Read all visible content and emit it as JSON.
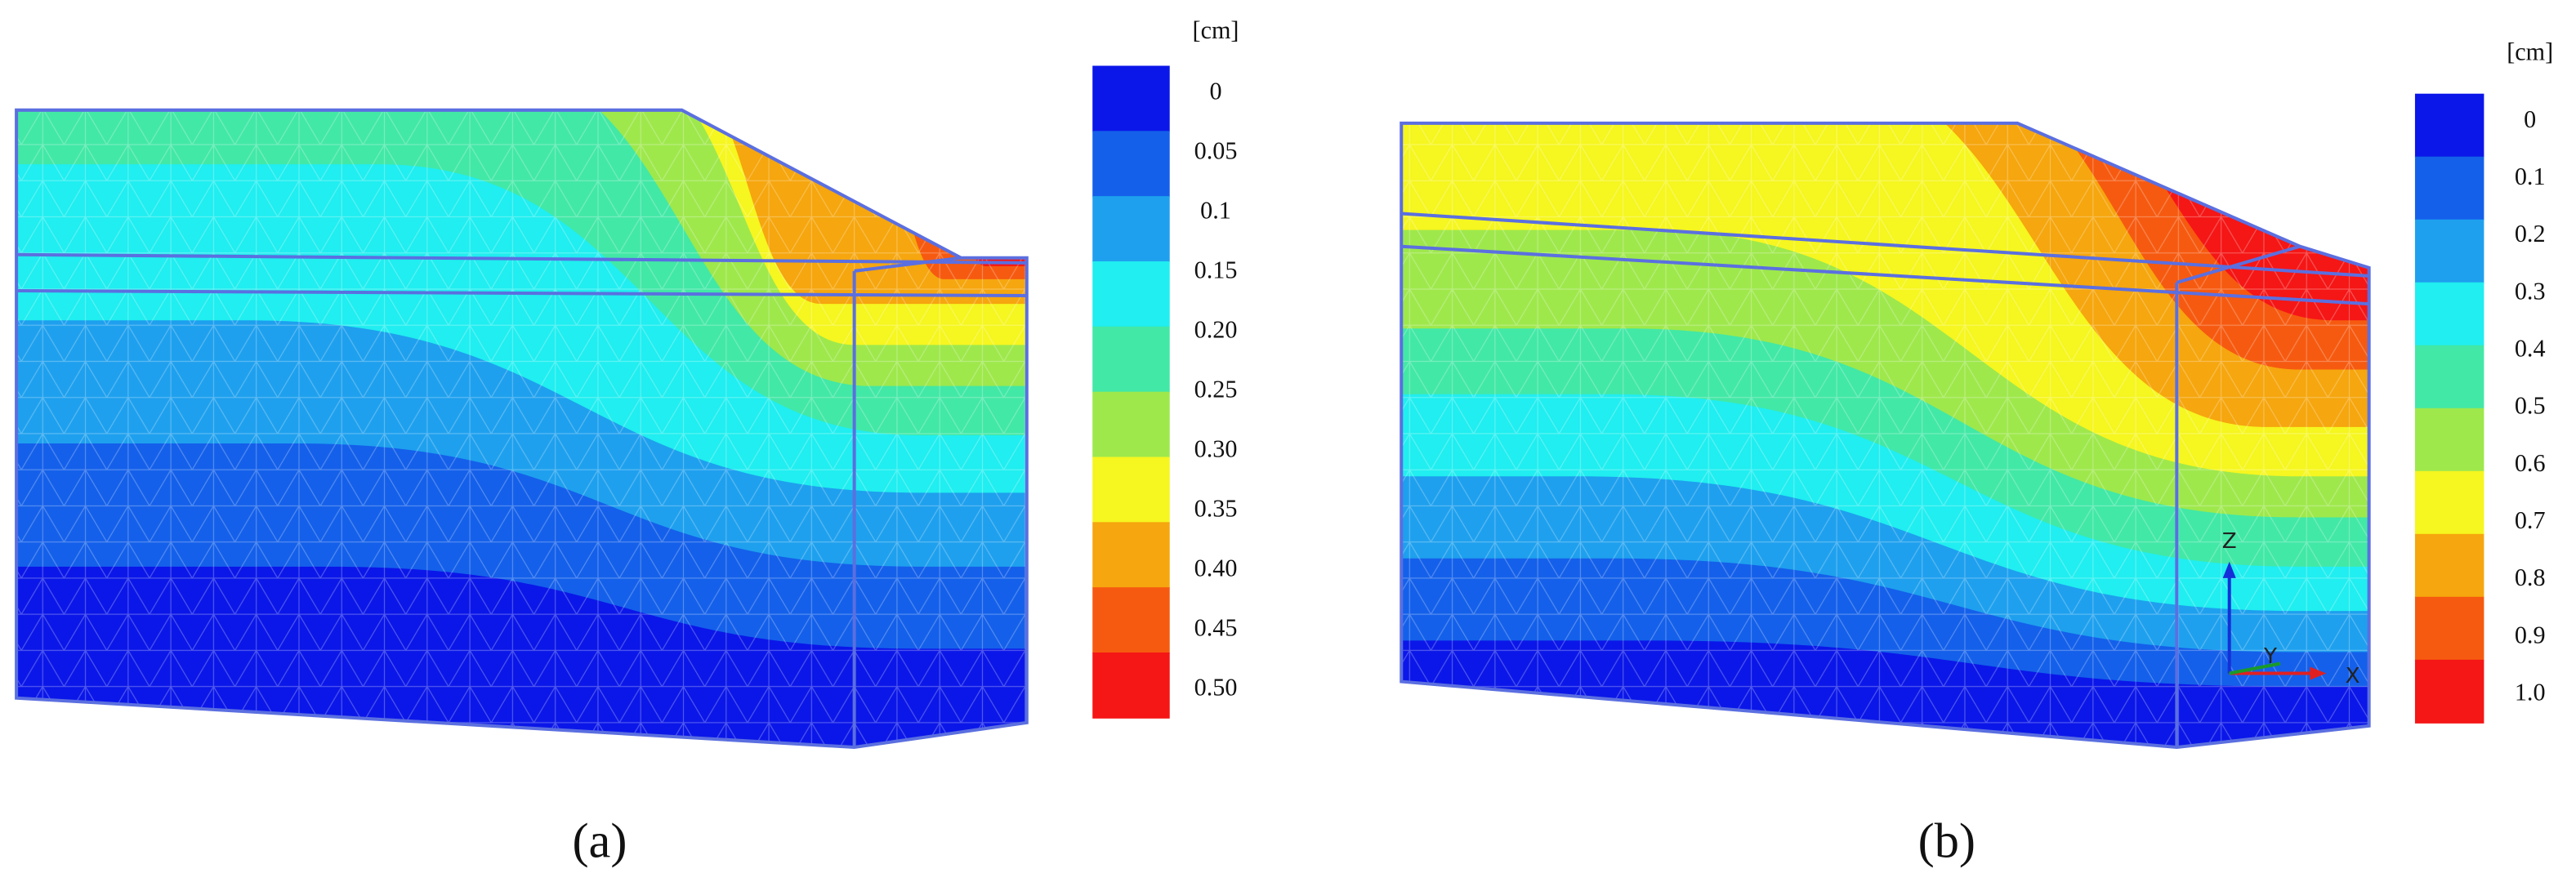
{
  "panels": [
    {
      "caption": "(a)",
      "unit": "[cm]",
      "legend_labels": [
        "0",
        "0.05",
        "0.1",
        "0.15",
        "0.20",
        "0.25",
        "0.30",
        "0.35",
        "0.40",
        "0.45",
        "0.50"
      ],
      "colors": [
        "#0b17e8",
        "#1460ea",
        "#1ea0ee",
        "#20eef0",
        "#42e8a6",
        "#9ee84c",
        "#f6f620",
        "#f6a60e",
        "#f65a10",
        "#f51616"
      ]
    },
    {
      "caption": "(b)",
      "unit": "[cm]",
      "legend_labels": [
        "0",
        "0.1",
        "0.2",
        "0.3",
        "0.4",
        "0.5",
        "0.6",
        "0.7",
        "0.8",
        "0.9",
        "1.0"
      ],
      "colors": [
        "#0b17e8",
        "#1460ea",
        "#1ea0ee",
        "#20eef0",
        "#42e8a6",
        "#9ee84c",
        "#f6f620",
        "#f6a60e",
        "#f65a10",
        "#f51616"
      ],
      "axes": [
        "Z",
        "Y",
        "X"
      ]
    }
  ]
}
